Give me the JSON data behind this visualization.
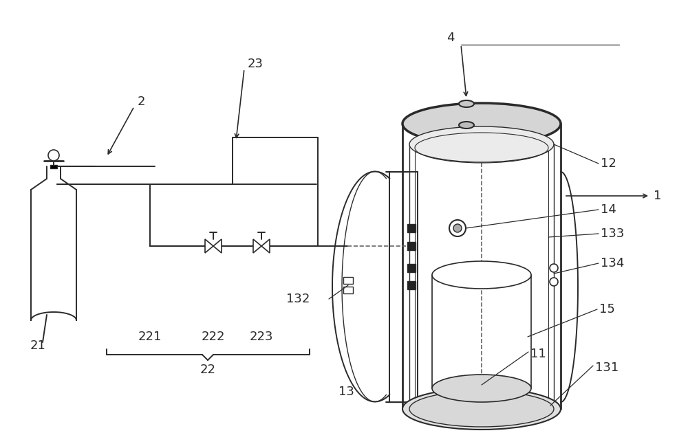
{
  "bg_color": "#ffffff",
  "line_color": "#2a2a2a",
  "dashed_color": "#666666",
  "label_color": "#2a2a2a",
  "fig_w": 10.0,
  "fig_h": 6.46,
  "dpi": 100
}
